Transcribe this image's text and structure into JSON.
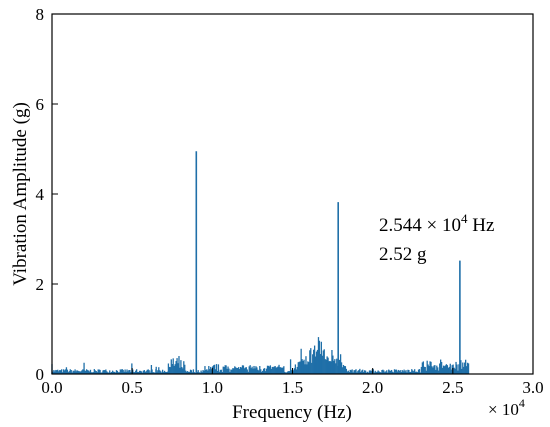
{
  "chart_data": {
    "type": "line",
    "xlabel": "Frequency (Hz)",
    "ylabel": "Vibration Amplitude (g)",
    "x_multiplier_label": "× 10",
    "x_multiplier_exp": "4",
    "xlim": [
      0,
      30000
    ],
    "ylim": [
      0,
      8
    ],
    "xticks": [
      0,
      5000,
      10000,
      15000,
      20000,
      25000,
      30000
    ],
    "xtick_labels": [
      "0.0",
      "0.5",
      "1.0",
      "1.5",
      "2.0",
      "2.5",
      "3.0"
    ],
    "yticks": [
      0,
      2,
      4,
      6,
      8
    ],
    "ytick_labels": [
      "0",
      "2",
      "4",
      "6",
      "8"
    ],
    "series_color": "#1f6fa8",
    "frequency_max": 26000,
    "peaks": [
      {
        "x": 9000,
        "y": 4.95
      },
      {
        "x": 17850,
        "y": 3.82
      },
      {
        "x": 25440,
        "y": 2.52
      }
    ],
    "annotation": {
      "line1_prefix": "2.544 × 10",
      "line1_exp": "4",
      "line1_suffix": " Hz",
      "line2": "2.52 g"
    }
  }
}
